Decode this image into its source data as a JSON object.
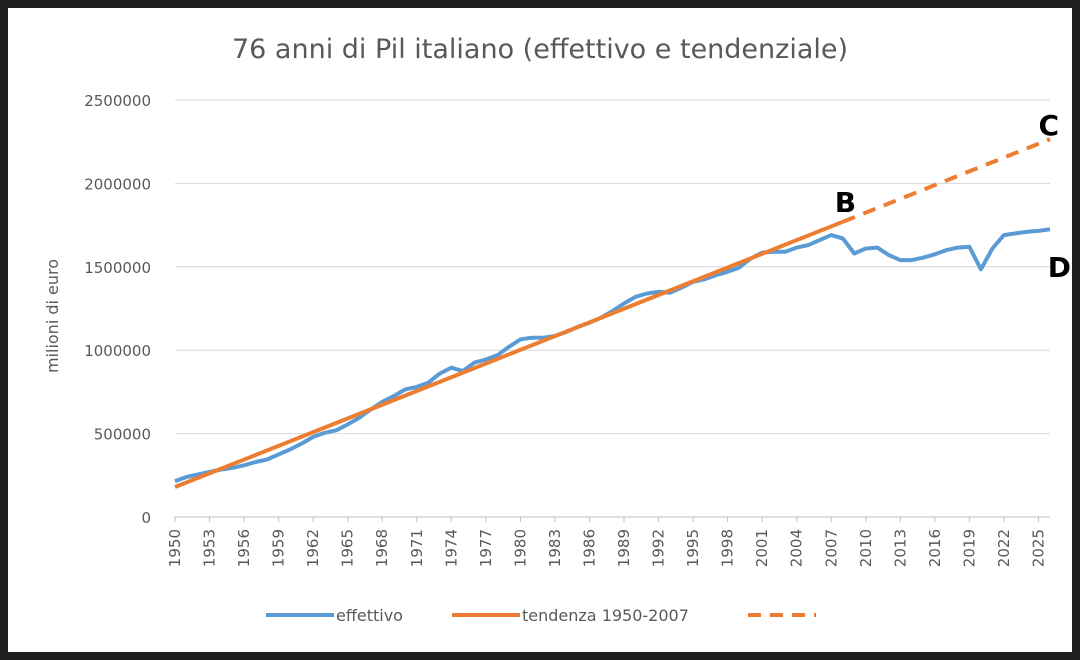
{
  "chart_data": {
    "type": "line",
    "title": "76 anni di Pil italiano (effettivo e tendenziale)",
    "xlabel": "",
    "ylabel": "milioni di euro",
    "xlim": [
      1950,
      2026
    ],
    "ylim": [
      0,
      2500000
    ],
    "y_ticks": [
      "0",
      "500000",
      "1000000",
      "1500000",
      "2000000",
      "2500000"
    ],
    "x_ticks": [
      "1950",
      "1953",
      "1956",
      "1959",
      "1962",
      "1965",
      "1968",
      "1971",
      "1974",
      "1977",
      "1980",
      "1983",
      "1986",
      "1989",
      "1992",
      "1995",
      "1998",
      "2001",
      "2004",
      "2007",
      "2010",
      "2013",
      "2016",
      "2019",
      "2022",
      "2025"
    ],
    "grid": true,
    "legend_position": "bottom",
    "colors": {
      "effettivo": "#5b9bd5",
      "tendenza": "#ed7d31"
    },
    "series": [
      {
        "name": "effettivo",
        "style": "solid",
        "x": [
          1950,
          1951,
          1952,
          1953,
          1954,
          1955,
          1956,
          1957,
          1958,
          1959,
          1960,
          1961,
          1962,
          1963,
          1964,
          1965,
          1966,
          1967,
          1968,
          1969,
          1970,
          1971,
          1972,
          1973,
          1974,
          1975,
          1976,
          1977,
          1978,
          1979,
          1980,
          1981,
          1982,
          1983,
          1984,
          1985,
          1986,
          1987,
          1988,
          1989,
          1990,
          1991,
          1992,
          1993,
          1994,
          1995,
          1996,
          1997,
          1998,
          1999,
          2000,
          2001,
          2002,
          2003,
          2004,
          2005,
          2006,
          2007,
          2008,
          2009,
          2010,
          2011,
          2012,
          2013,
          2014,
          2015,
          2016,
          2017,
          2018,
          2019,
          2020,
          2021,
          2022,
          2023,
          2024,
          2025,
          2026
        ],
        "values": [
          215000,
          240000,
          255000,
          270000,
          285000,
          295000,
          310000,
          330000,
          345000,
          375000,
          405000,
          440000,
          480000,
          505000,
          520000,
          555000,
          595000,
          645000,
          690000,
          725000,
          765000,
          780000,
          805000,
          860000,
          895000,
          875000,
          925000,
          945000,
          970000,
          1020000,
          1065000,
          1075000,
          1075000,
          1085000,
          1110000,
          1140000,
          1165000,
          1195000,
          1235000,
          1280000,
          1320000,
          1340000,
          1350000,
          1345000,
          1375000,
          1410000,
          1425000,
          1450000,
          1470000,
          1495000,
          1550000,
          1585000,
          1590000,
          1590000,
          1615000,
          1630000,
          1660000,
          1690000,
          1670000,
          1580000,
          1610000,
          1615000,
          1570000,
          1540000,
          1540000,
          1555000,
          1575000,
          1600000,
          1615000,
          1620000,
          1485000,
          1610000,
          1690000,
          1700000,
          1710000,
          1715000,
          1725000
        ]
      },
      {
        "name": "tendenza 1950-2007",
        "style": "solid",
        "x": [
          1950,
          2008
        ],
        "values": [
          180000,
          1770000
        ]
      },
      {
        "name": "",
        "style": "dashed",
        "x": [
          2008,
          2026
        ],
        "values": [
          1770000,
          2265000
        ]
      }
    ],
    "annotations": [
      {
        "text": "B",
        "x": 2007.3,
        "y": 1830000
      },
      {
        "text": "C",
        "x": 2025.0,
        "y": 2290000
      },
      {
        "text": "D",
        "x": 2025.8,
        "y": 1440000
      }
    ]
  }
}
